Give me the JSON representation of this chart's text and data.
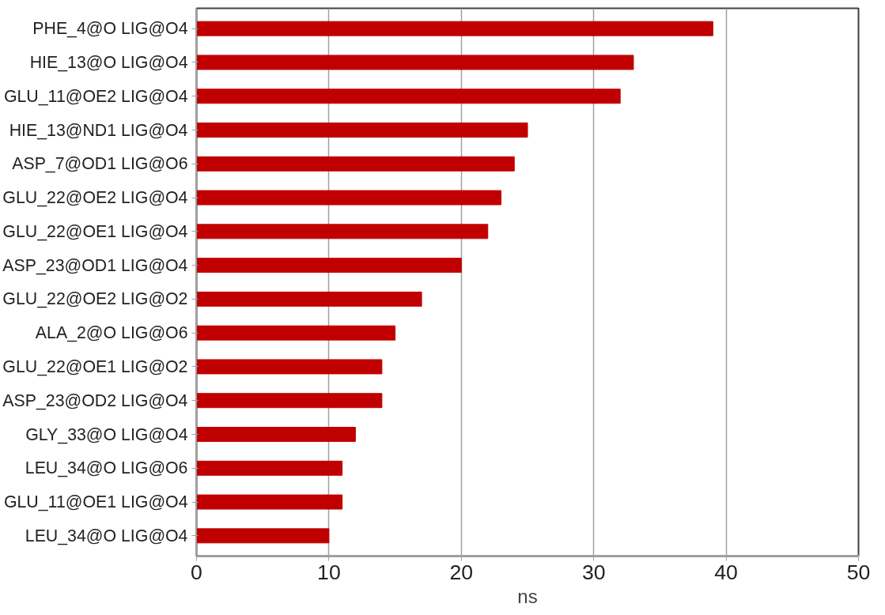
{
  "chart_data": {
    "type": "bar",
    "orientation": "horizontal",
    "xlabel": "ns",
    "categories": [
      "PHE_4@O LIG@O4",
      "HIE_13@O LIG@O4",
      "GLU_11@OE2 LIG@O4",
      "HIE_13@ND1 LIG@O4",
      "ASP_7@OD1 LIG@O6",
      "GLU_22@OE2 LIG@O4",
      "GLU_22@OE1 LIG@O4",
      "ASP_23@OD1 LIG@O4",
      "GLU_22@OE2 LIG@O2",
      "ALA_2@O LIG@O6",
      "GLU_22@OE1 LIG@O2",
      "ASP_23@OD2 LIG@O4",
      "GLY_33@O LIG@O4",
      "LEU_34@O LIG@O6",
      "GLU_11@OE1 LIG@O4",
      "LEU_34@O LIG@O4"
    ],
    "values": [
      39,
      33,
      32,
      25,
      24,
      23,
      22,
      20,
      17,
      15,
      14,
      14,
      12,
      11,
      11,
      10
    ],
    "color": "#c00000",
    "xlim": [
      0,
      50
    ],
    "xticks": [
      0,
      10,
      20,
      30,
      40,
      50
    ],
    "grid": "x"
  }
}
